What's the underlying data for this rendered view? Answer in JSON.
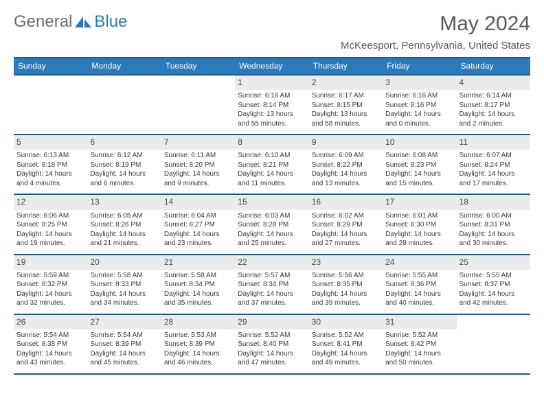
{
  "logo": {
    "part1": "General",
    "part2": "Blue"
  },
  "header": {
    "month": "May 2024",
    "location": "McKeesport, Pennsylvania, United States"
  },
  "colors": {
    "brand": "#2c7aba",
    "border": "#1f5a8a",
    "daynum_bg": "#ebebeb",
    "text": "#3a3a3a",
    "header_text": "#5a5a5a",
    "white": "#ffffff"
  },
  "daynames": [
    "Sunday",
    "Monday",
    "Tuesday",
    "Wednesday",
    "Thursday",
    "Friday",
    "Saturday"
  ],
  "structure": {
    "type": "calendar",
    "columns": 7,
    "rows": 5,
    "cell_bg": "#ffffff",
    "daynum_fontsize": 12,
    "body_fontsize": 10
  },
  "weeks": [
    [
      {
        "n": "",
        "sunrise": "",
        "sunset": "",
        "daylight": ""
      },
      {
        "n": "",
        "sunrise": "",
        "sunset": "",
        "daylight": ""
      },
      {
        "n": "",
        "sunrise": "",
        "sunset": "",
        "daylight": ""
      },
      {
        "n": "1",
        "sunrise": "Sunrise: 6:18 AM",
        "sunset": "Sunset: 8:14 PM",
        "daylight": "Daylight: 13 hours and 55 minutes."
      },
      {
        "n": "2",
        "sunrise": "Sunrise: 6:17 AM",
        "sunset": "Sunset: 8:15 PM",
        "daylight": "Daylight: 13 hours and 58 minutes."
      },
      {
        "n": "3",
        "sunrise": "Sunrise: 6:16 AM",
        "sunset": "Sunset: 8:16 PM",
        "daylight": "Daylight: 14 hours and 0 minutes."
      },
      {
        "n": "4",
        "sunrise": "Sunrise: 6:14 AM",
        "sunset": "Sunset: 8:17 PM",
        "daylight": "Daylight: 14 hours and 2 minutes."
      }
    ],
    [
      {
        "n": "5",
        "sunrise": "Sunrise: 6:13 AM",
        "sunset": "Sunset: 8:18 PM",
        "daylight": "Daylight: 14 hours and 4 minutes."
      },
      {
        "n": "6",
        "sunrise": "Sunrise: 6:12 AM",
        "sunset": "Sunset: 8:19 PM",
        "daylight": "Daylight: 14 hours and 6 minutes."
      },
      {
        "n": "7",
        "sunrise": "Sunrise: 6:11 AM",
        "sunset": "Sunset: 8:20 PM",
        "daylight": "Daylight: 14 hours and 9 minutes."
      },
      {
        "n": "8",
        "sunrise": "Sunrise: 6:10 AM",
        "sunset": "Sunset: 8:21 PM",
        "daylight": "Daylight: 14 hours and 11 minutes."
      },
      {
        "n": "9",
        "sunrise": "Sunrise: 6:09 AM",
        "sunset": "Sunset: 8:22 PM",
        "daylight": "Daylight: 14 hours and 13 minutes."
      },
      {
        "n": "10",
        "sunrise": "Sunrise: 6:08 AM",
        "sunset": "Sunset: 8:23 PM",
        "daylight": "Daylight: 14 hours and 15 minutes."
      },
      {
        "n": "11",
        "sunrise": "Sunrise: 6:07 AM",
        "sunset": "Sunset: 8:24 PM",
        "daylight": "Daylight: 14 hours and 17 minutes."
      }
    ],
    [
      {
        "n": "12",
        "sunrise": "Sunrise: 6:06 AM",
        "sunset": "Sunset: 8:25 PM",
        "daylight": "Daylight: 14 hours and 19 minutes."
      },
      {
        "n": "13",
        "sunrise": "Sunrise: 6:05 AM",
        "sunset": "Sunset: 8:26 PM",
        "daylight": "Daylight: 14 hours and 21 minutes."
      },
      {
        "n": "14",
        "sunrise": "Sunrise: 6:04 AM",
        "sunset": "Sunset: 8:27 PM",
        "daylight": "Daylight: 14 hours and 23 minutes."
      },
      {
        "n": "15",
        "sunrise": "Sunrise: 6:03 AM",
        "sunset": "Sunset: 8:28 PM",
        "daylight": "Daylight: 14 hours and 25 minutes."
      },
      {
        "n": "16",
        "sunrise": "Sunrise: 6:02 AM",
        "sunset": "Sunset: 8:29 PM",
        "daylight": "Daylight: 14 hours and 27 minutes."
      },
      {
        "n": "17",
        "sunrise": "Sunrise: 6:01 AM",
        "sunset": "Sunset: 8:30 PM",
        "daylight": "Daylight: 14 hours and 28 minutes."
      },
      {
        "n": "18",
        "sunrise": "Sunrise: 6:00 AM",
        "sunset": "Sunset: 8:31 PM",
        "daylight": "Daylight: 14 hours and 30 minutes."
      }
    ],
    [
      {
        "n": "19",
        "sunrise": "Sunrise: 5:59 AM",
        "sunset": "Sunset: 8:32 PM",
        "daylight": "Daylight: 14 hours and 32 minutes."
      },
      {
        "n": "20",
        "sunrise": "Sunrise: 5:58 AM",
        "sunset": "Sunset: 8:33 PM",
        "daylight": "Daylight: 14 hours and 34 minutes."
      },
      {
        "n": "21",
        "sunrise": "Sunrise: 5:58 AM",
        "sunset": "Sunset: 8:34 PM",
        "daylight": "Daylight: 14 hours and 35 minutes."
      },
      {
        "n": "22",
        "sunrise": "Sunrise: 5:57 AM",
        "sunset": "Sunset: 8:34 PM",
        "daylight": "Daylight: 14 hours and 37 minutes."
      },
      {
        "n": "23",
        "sunrise": "Sunrise: 5:56 AM",
        "sunset": "Sunset: 8:35 PM",
        "daylight": "Daylight: 14 hours and 39 minutes."
      },
      {
        "n": "24",
        "sunrise": "Sunrise: 5:55 AM",
        "sunset": "Sunset: 8:36 PM",
        "daylight": "Daylight: 14 hours and 40 minutes."
      },
      {
        "n": "25",
        "sunrise": "Sunrise: 5:55 AM",
        "sunset": "Sunset: 8:37 PM",
        "daylight": "Daylight: 14 hours and 42 minutes."
      }
    ],
    [
      {
        "n": "26",
        "sunrise": "Sunrise: 5:54 AM",
        "sunset": "Sunset: 8:38 PM",
        "daylight": "Daylight: 14 hours and 43 minutes."
      },
      {
        "n": "27",
        "sunrise": "Sunrise: 5:54 AM",
        "sunset": "Sunset: 8:39 PM",
        "daylight": "Daylight: 14 hours and 45 minutes."
      },
      {
        "n": "28",
        "sunrise": "Sunrise: 5:53 AM",
        "sunset": "Sunset: 8:39 PM",
        "daylight": "Daylight: 14 hours and 46 minutes."
      },
      {
        "n": "29",
        "sunrise": "Sunrise: 5:52 AM",
        "sunset": "Sunset: 8:40 PM",
        "daylight": "Daylight: 14 hours and 47 minutes."
      },
      {
        "n": "30",
        "sunrise": "Sunrise: 5:52 AM",
        "sunset": "Sunset: 8:41 PM",
        "daylight": "Daylight: 14 hours and 49 minutes."
      },
      {
        "n": "31",
        "sunrise": "Sunrise: 5:52 AM",
        "sunset": "Sunset: 8:42 PM",
        "daylight": "Daylight: 14 hours and 50 minutes."
      },
      {
        "n": "",
        "sunrise": "",
        "sunset": "",
        "daylight": ""
      }
    ]
  ]
}
